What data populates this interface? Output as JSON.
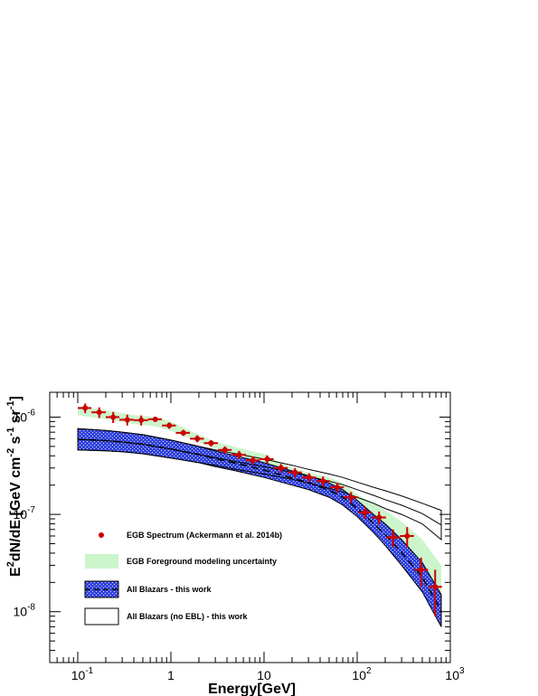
{
  "chart_data": {
    "type": "scatter",
    "title": "",
    "xlabel": "Energy[GeV]",
    "ylabel": "E²dN/dE [GeV cm⁻² s⁻¹ sr⁻¹]",
    "xscale": "log",
    "yscale": "log",
    "xlim": [
      0.05,
      1000
    ],
    "ylim": [
      3e-09,
      1.8e-06
    ],
    "grid": false,
    "legend_position": "left",
    "x_tick_labels": [
      {
        "value": 0.1,
        "base": "10",
        "exp": "-1"
      },
      {
        "value": 1,
        "base": "1",
        "exp": ""
      },
      {
        "value": 10,
        "base": "10",
        "exp": ""
      },
      {
        "value": 100,
        "base": "10",
        "exp": "2"
      },
      {
        "value": 1000,
        "base": "10",
        "exp": "3"
      }
    ],
    "y_tick_labels": [
      {
        "value": 1e-06,
        "base": "10",
        "exp": "-6"
      },
      {
        "value": 1e-07,
        "base": "10",
        "exp": "-7"
      },
      {
        "value": 1e-08,
        "base": "10",
        "exp": "-8"
      }
    ],
    "series": [
      {
        "name": "EGB Spectrum (Ackermann et al. 2014b)",
        "kind": "points",
        "color": "#cc0000",
        "points": [
          {
            "x": 0.12,
            "y": 1.24e-06,
            "yerr": 1.4e-07,
            "xlo": 0.1,
            "xhi": 0.14
          },
          {
            "x": 0.17,
            "y": 1.12e-06,
            "yerr": 1.4e-07,
            "xlo": 0.14,
            "xhi": 0.2
          },
          {
            "x": 0.24,
            "y": 1e-06,
            "yerr": 1.3e-07,
            "xlo": 0.2,
            "xhi": 0.28
          },
          {
            "x": 0.34,
            "y": 9.4e-07,
            "yerr": 1.2e-07,
            "xlo": 0.28,
            "xhi": 0.4
          },
          {
            "x": 0.48,
            "y": 9.3e-07,
            "yerr": 1.1e-07,
            "xlo": 0.4,
            "xhi": 0.57
          },
          {
            "x": 0.68,
            "y": 9.5e-07,
            "yerr": 6e-08,
            "xlo": 0.57,
            "xhi": 0.8
          },
          {
            "x": 0.96,
            "y": 8.2e-07,
            "yerr": 6e-08,
            "xlo": 0.8,
            "xhi": 1.13
          },
          {
            "x": 1.36,
            "y": 6.9e-07,
            "yerr": 5e-08,
            "xlo": 1.13,
            "xhi": 1.6
          },
          {
            "x": 1.92,
            "y": 6e-07,
            "yerr": 5e-08,
            "xlo": 1.6,
            "xhi": 2.26
          },
          {
            "x": 2.7,
            "y": 5.4e-07,
            "yerr": 4e-08,
            "xlo": 2.26,
            "xhi": 3.2
          },
          {
            "x": 3.8,
            "y": 4.6e-07,
            "yerr": 4e-08,
            "xlo": 3.2,
            "xhi": 4.5
          },
          {
            "x": 5.4,
            "y": 4.1e-07,
            "yerr": 4e-08,
            "xlo": 4.5,
            "xhi": 6.4
          },
          {
            "x": 7.6,
            "y": 3.6e-07,
            "yerr": 3.5e-08,
            "xlo": 6.4,
            "xhi": 9.0
          },
          {
            "x": 10.8,
            "y": 3.7e-07,
            "yerr": 3.5e-08,
            "xlo": 9.0,
            "xhi": 12.7
          },
          {
            "x": 15.2,
            "y": 3e-07,
            "yerr": 3e-08,
            "xlo": 12.7,
            "xhi": 18.0
          },
          {
            "x": 21.5,
            "y": 2.7e-07,
            "yerr": 3e-08,
            "xlo": 18.0,
            "xhi": 25.4
          },
          {
            "x": 30.4,
            "y": 2.4e-07,
            "yerr": 2.5e-08,
            "xlo": 25.4,
            "xhi": 36.0
          },
          {
            "x": 43,
            "y": 2.2e-07,
            "yerr": 2.5e-08,
            "xlo": 36.0,
            "xhi": 51.0
          },
          {
            "x": 61,
            "y": 1.9e-07,
            "yerr": 2.2e-08,
            "xlo": 51.0,
            "xhi": 72.0
          },
          {
            "x": 86,
            "y": 1.5e-07,
            "yerr": 2e-08,
            "xlo": 72.0,
            "xhi": 102.0
          },
          {
            "x": 122,
            "y": 1.05e-07,
            "yerr": 1.5e-08,
            "xlo": 102.0,
            "xhi": 144.0
          },
          {
            "x": 172,
            "y": 9.3e-08,
            "yerr": 1.4e-08,
            "xlo": 144.0,
            "xhi": 204.0
          },
          {
            "x": 243,
            "y": 5.8e-08,
            "yerr": 1.2e-08,
            "xlo": 204.0,
            "xhi": 288.0
          },
          {
            "x": 344,
            "y": 6e-08,
            "yerr": 1.4e-08,
            "xlo": 288.0,
            "xhi": 407.0
          },
          {
            "x": 486,
            "y": 2.7e-08,
            "yerr": 9e-09,
            "xlo": 407.0,
            "xhi": 576.0
          },
          {
            "x": 688,
            "y": 1.8e-08,
            "yerr": 9e-09,
            "xlo": 576.0,
            "xhi": 814.0
          }
        ]
      },
      {
        "name": "EGB Foreground modeling uncertainty",
        "kind": "band",
        "color": "#ccf5cc",
        "x": [
          0.1,
          0.2,
          0.4,
          0.7,
          1.0,
          1.5,
          2,
          3,
          5,
          7,
          10,
          15,
          20,
          30,
          50,
          70,
          100,
          150,
          200,
          300,
          500,
          800
        ],
        "upper": [
          1.3e-06,
          1.18e-06,
          1.05e-06,
          1e-06,
          9e-07,
          7.5e-07,
          6.6e-07,
          5.6e-07,
          4.9e-07,
          4.5e-07,
          4.2e-07,
          3.4e-07,
          3e-07,
          2.7e-07,
          2.4e-07,
          2.1e-07,
          1.6e-07,
          1.3e-07,
          1.1e-07,
          8.5e-08,
          5.5e-08,
          3e-08
        ],
        "lower": [
          1.05e-06,
          9.5e-07,
          8.5e-07,
          8e-07,
          7.2e-07,
          6.2e-07,
          5.5e-07,
          4.8e-07,
          4.1e-07,
          3.8e-07,
          3.4e-07,
          2.8e-07,
          2.5e-07,
          2.2e-07,
          1.9e-07,
          1.7e-07,
          1.3e-07,
          1e-07,
          8e-08,
          5.5e-08,
          3e-08,
          1.5e-08
        ]
      },
      {
        "name": "All Blazars - this work",
        "kind": "band",
        "color": "#3344dd",
        "x": [
          0.1,
          0.2,
          0.3,
          0.5,
          1,
          2,
          3,
          5,
          10,
          20,
          30,
          50,
          70,
          100,
          150,
          200,
          300,
          500,
          800
        ],
        "upper": [
          7.6e-07,
          7.3e-07,
          7e-07,
          6.6e-07,
          5.8e-07,
          5e-07,
          4.5e-07,
          4e-07,
          3.4e-07,
          2.8e-07,
          2.5e-07,
          2.1e-07,
          1.8e-07,
          1.4e-07,
          1e-07,
          8e-08,
          5.5e-08,
          3.2e-08,
          1.5e-08
        ],
        "lower": [
          4.6e-07,
          4.5e-07,
          4.4e-07,
          4.2e-07,
          3.8e-07,
          3.4e-07,
          3.1e-07,
          2.8e-07,
          2.4e-07,
          2e-07,
          1.8e-07,
          1.5e-07,
          1.25e-07,
          9.5e-08,
          6.5e-08,
          4.8e-08,
          3e-08,
          1.6e-08,
          7e-09
        ]
      },
      {
        "name": "All Blazars (no EBL) - this work",
        "kind": "band-outline",
        "color": "#000000",
        "x": [
          0.1,
          0.2,
          0.3,
          0.5,
          1,
          2,
          3,
          5,
          10,
          20,
          30,
          50,
          70,
          100,
          150,
          200,
          300,
          500,
          800
        ],
        "upper": [
          7.6e-07,
          7.3e-07,
          7e-07,
          6.6e-07,
          5.8e-07,
          5e-07,
          4.6e-07,
          4.2e-07,
          3.7e-07,
          3.2e-07,
          2.9e-07,
          2.6e-07,
          2.4e-07,
          2.15e-07,
          1.9e-07,
          1.75e-07,
          1.55e-07,
          1.3e-07,
          1.1e-07
        ],
        "lower": [
          4.6e-07,
          4.5e-07,
          4.4e-07,
          4.2e-07,
          3.8e-07,
          3.4e-07,
          3.2e-07,
          2.9e-07,
          2.6e-07,
          2.3e-07,
          2.1e-07,
          1.85e-07,
          1.7e-07,
          1.5e-07,
          1.3e-07,
          1.15e-07,
          1e-07,
          8e-08,
          5.5e-08
        ]
      }
    ]
  },
  "legend": {
    "items": [
      {
        "label": "EGB Spectrum (Ackermann et al. 2014b)",
        "kind": "marker",
        "color": "#cc0000"
      },
      {
        "label": "EGB Foreground modeling uncertainty",
        "kind": "fill",
        "color": "#ccf5cc"
      },
      {
        "label": "All Blazars - this work",
        "kind": "hatch",
        "color": "#3344dd"
      },
      {
        "label": "All Blazars (no EBL) - this work",
        "kind": "outline",
        "color": "#000000"
      }
    ]
  }
}
